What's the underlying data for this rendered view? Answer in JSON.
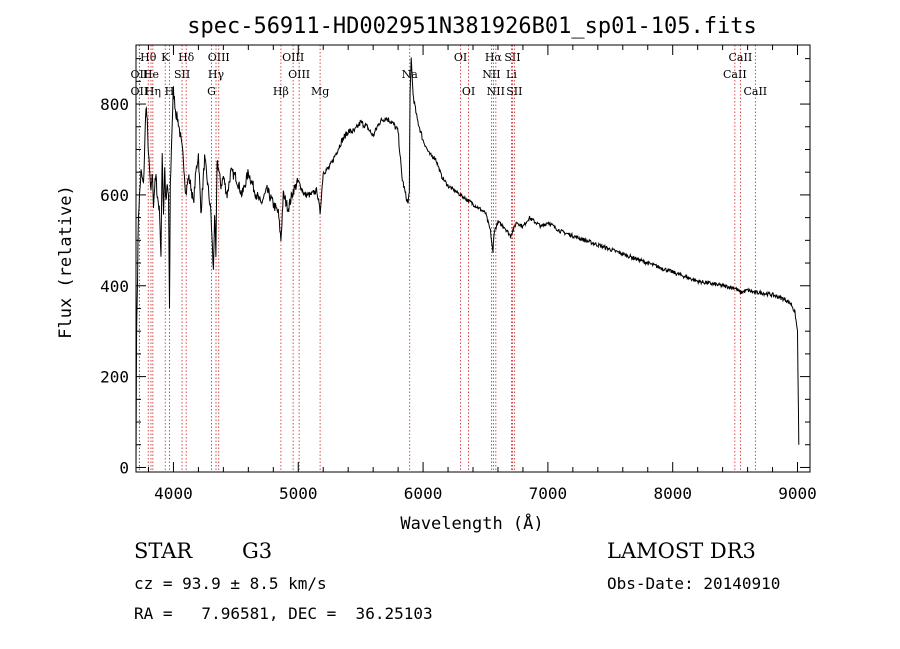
{
  "chart_data": {
    "type": "line",
    "title": "spec-56911-HD002951N381926B01_sp01-105.fits",
    "xlabel": "Wavelength (Å)",
    "ylabel": "Flux (relative)",
    "xlim": [
      3700,
      9100
    ],
    "ylim": [
      -10,
      930
    ],
    "xticks": [
      4000,
      5000,
      6000,
      7000,
      8000,
      9000
    ],
    "yticks": [
      0,
      200,
      400,
      600,
      800
    ],
    "series": [
      {
        "name": "spectrum",
        "x": [
          3700,
          3705,
          3720,
          3740,
          3760,
          3780,
          3790,
          3800,
          3820,
          3830,
          3840,
          3850,
          3860,
          3870,
          3880,
          3890,
          3900,
          3910,
          3920,
          3930,
          3940,
          3950,
          3960,
          3968,
          3975,
          3990,
          4000,
          4020,
          4040,
          4060,
          4080,
          4100,
          4120,
          4140,
          4160,
          4180,
          4200,
          4220,
          4250,
          4280,
          4300,
          4320,
          4330,
          4340,
          4350,
          4380,
          4400,
          4430,
          4460,
          4500,
          4550,
          4600,
          4650,
          4700,
          4750,
          4800,
          4840,
          4861,
          4880,
          4920,
          4960,
          5000,
          5050,
          5100,
          5150,
          5175,
          5200,
          5250,
          5300,
          5350,
          5400,
          5450,
          5500,
          5550,
          5600,
          5650,
          5700,
          5750,
          5800,
          5830,
          5860,
          5880,
          5890,
          5896,
          5905,
          5920,
          5950,
          6000,
          6050,
          6100,
          6150,
          6200,
          6250,
          6300,
          6350,
          6400,
          6450,
          6500,
          6540,
          6560,
          6563,
          6570,
          6600,
          6650,
          6700,
          6750,
          6800,
          6850,
          6900,
          6950,
          7000,
          7100,
          7200,
          7300,
          7400,
          7500,
          7600,
          7700,
          7800,
          7900,
          8000,
          8100,
          8200,
          8300,
          8400,
          8500,
          8542,
          8600,
          8662,
          8700,
          8800,
          8900,
          8950,
          8980,
          9000,
          9010
        ],
        "values": [
          0,
          300,
          560,
          650,
          620,
          800,
          760,
          690,
          600,
          650,
          580,
          620,
          640,
          600,
          580,
          560,
          460,
          700,
          560,
          660,
          580,
          620,
          600,
          340,
          620,
          760,
          830,
          780,
          760,
          720,
          680,
          600,
          640,
          620,
          580,
          650,
          690,
          560,
          680,
          610,
          560,
          430,
          560,
          460,
          680,
          620,
          640,
          600,
          650,
          640,
          600,
          650,
          610,
          580,
          610,
          580,
          560,
          500,
          600,
          570,
          610,
          630,
          600,
          600,
          610,
          560,
          650,
          660,
          690,
          720,
          740,
          740,
          760,
          750,
          730,
          760,
          770,
          760,
          740,
          640,
          600,
          580,
          610,
          820,
          900,
          820,
          770,
          720,
          690,
          680,
          640,
          620,
          610,
          600,
          590,
          580,
          570,
          560,
          520,
          470,
          490,
          520,
          540,
          530,
          510,
          540,
          530,
          550,
          540,
          530,
          540,
          520,
          510,
          500,
          490,
          480,
          470,
          460,
          450,
          440,
          430,
          420,
          410,
          405,
          400,
          395,
          385,
          390,
          385,
          385,
          380,
          370,
          360,
          340,
          300,
          50
        ]
      }
    ],
    "spectral_lines": [
      {
        "label": "Hθ",
        "x": 3798,
        "row": 1
      },
      {
        "label": "K",
        "x": 3934,
        "row": 1
      },
      {
        "label": "Hδ",
        "x": 4102,
        "row": 1
      },
      {
        "label": "OIII",
        "x": 4363,
        "row": 1
      },
      {
        "label": "OIII",
        "x": 4959,
        "row": 1
      },
      {
        "label": "OI",
        "x": 6300,
        "row": 1
      },
      {
        "label": "Hα",
        "x": 6563,
        "row": 1
      },
      {
        "label": "SII",
        "x": 6716,
        "row": 1
      },
      {
        "label": "CaII",
        "x": 8542,
        "row": 1
      },
      {
        "label": "OII",
        "x": 3727,
        "row": 2
      },
      {
        "label": "He",
        "x": 3820,
        "row": 2
      },
      {
        "label": "SII",
        "x": 4069,
        "row": 2
      },
      {
        "label": "Hγ",
        "x": 4341,
        "row": 2
      },
      {
        "label": "OIII",
        "x": 5007,
        "row": 2
      },
      {
        "label": "Na",
        "x": 5893,
        "row": 2
      },
      {
        "label": "NII",
        "x": 6548,
        "row": 2
      },
      {
        "label": "Li",
        "x": 6708,
        "row": 2
      },
      {
        "label": "CaII",
        "x": 8498,
        "row": 2
      },
      {
        "label": "OII",
        "x": 3727,
        "row": 3
      },
      {
        "label": "Hη",
        "x": 3835,
        "row": 3
      },
      {
        "label": "H",
        "x": 3968,
        "row": 3
      },
      {
        "label": "G",
        "x": 4305,
        "row": 3
      },
      {
        "label": "Hβ",
        "x": 4861,
        "row": 3
      },
      {
        "label": "Mg",
        "x": 5175,
        "row": 3
      },
      {
        "label": "OI",
        "x": 6364,
        "row": 3
      },
      {
        "label": "NII",
        "x": 6583,
        "row": 3
      },
      {
        "label": "SII",
        "x": 6731,
        "row": 3
      },
      {
        "label": "CaII",
        "x": 8662,
        "row": 3
      }
    ]
  },
  "info": {
    "class": "STAR",
    "subclass": "G3",
    "survey": "LAMOST DR3",
    "cz": "cz = 93.9 ± 8.5 km/s",
    "obs_date": "Obs-Date: 20140910",
    "radec": "RA =   7.96581, DEC =  36.25103"
  },
  "colors": {
    "line_marker": "#cc2222",
    "spectrum": "#000000",
    "axis": "#000000"
  }
}
